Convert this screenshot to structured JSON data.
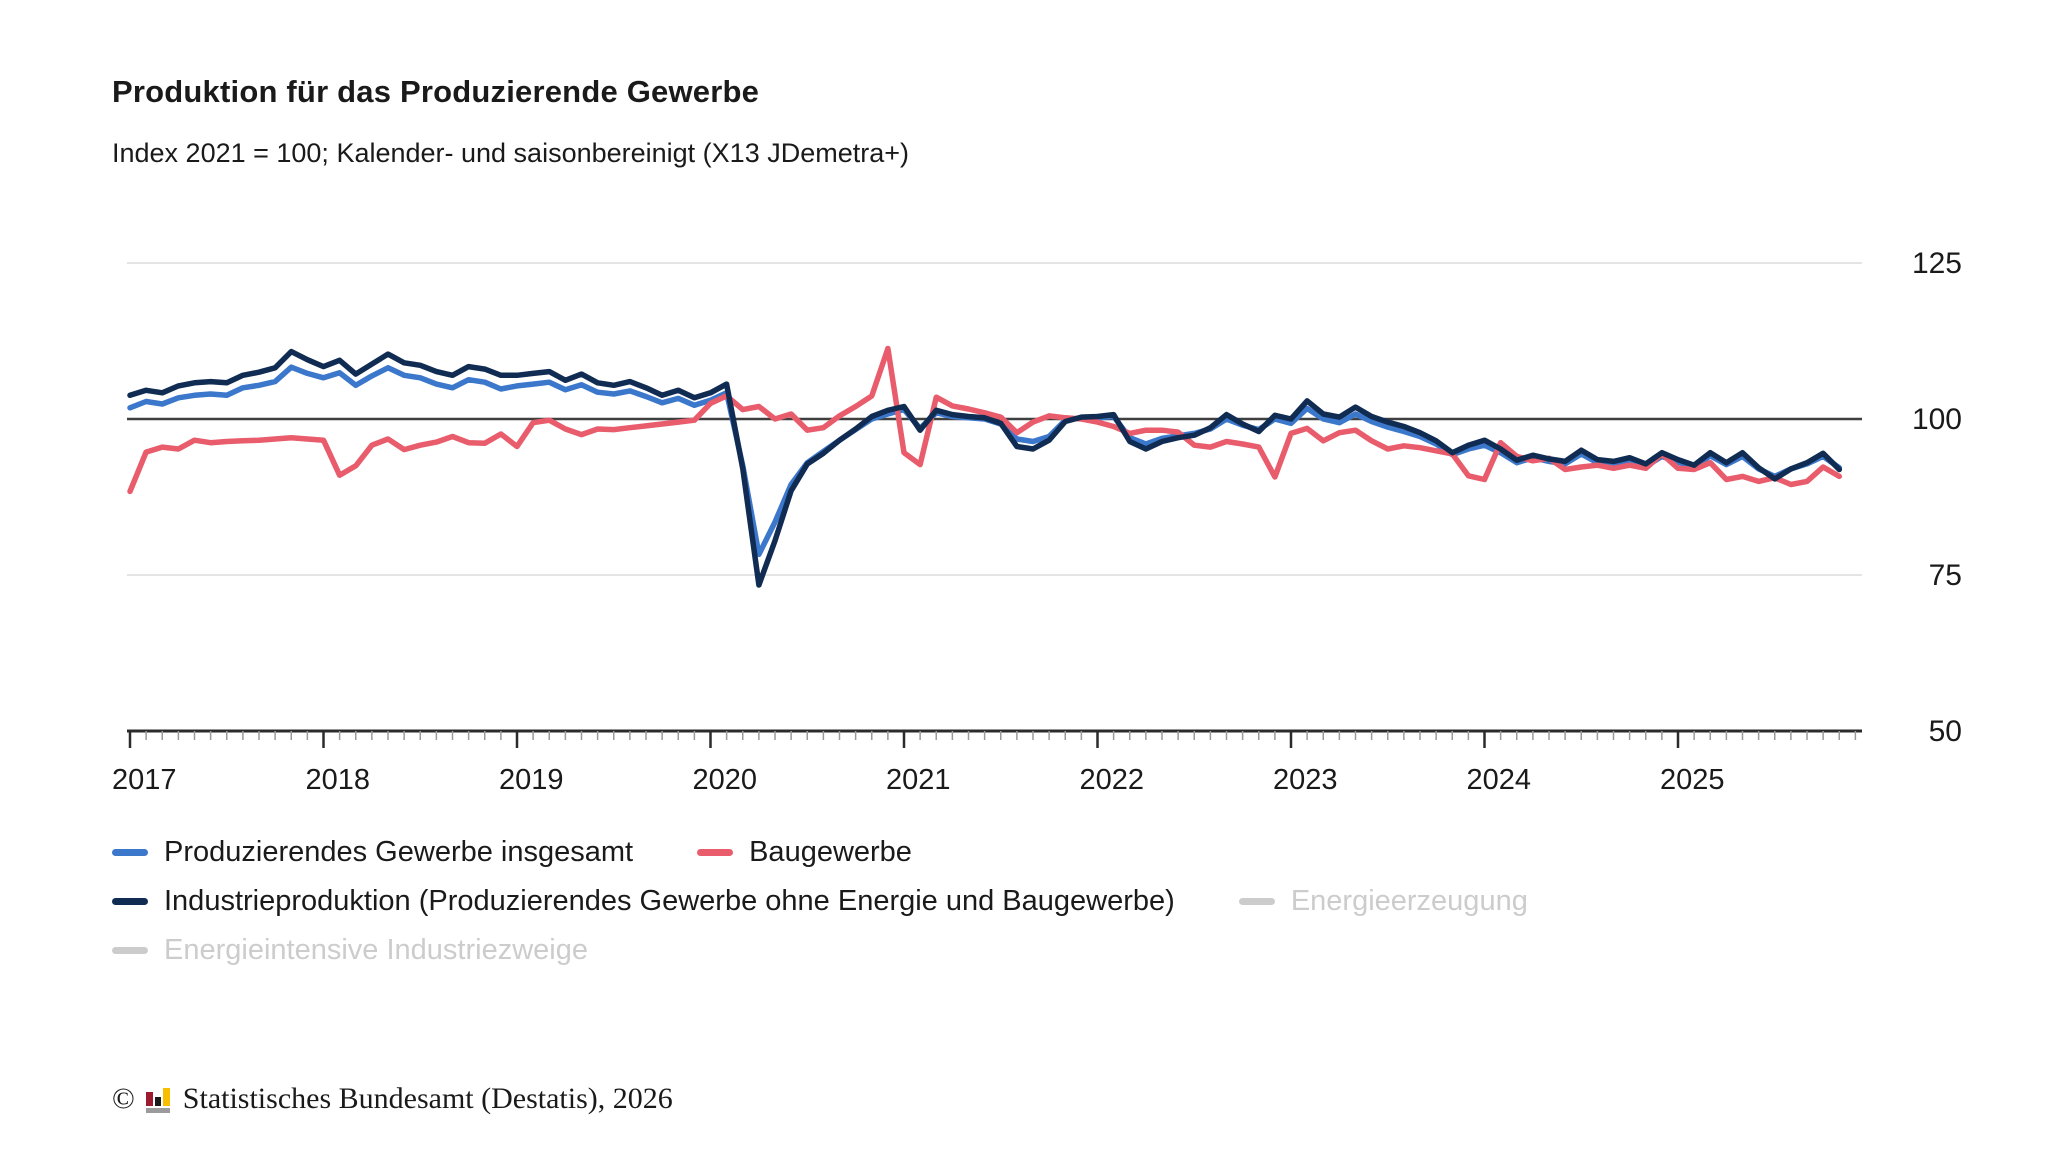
{
  "header": {
    "title": "Produktion für das Produzierende Gewerbe",
    "subtitle": "Index 2021 = 100; Kalender- und saisonbereinigt (X13 JDemetra+)"
  },
  "chart_data": {
    "type": "line",
    "title": "Produktion für das Produzierende Gewerbe",
    "subtitle": "Index 2021 = 100; Kalender- und saisonbereinigt (X13 JDemetra+)",
    "frequency": "monthly",
    "x_start": "2017-01",
    "x_end": "2025-11",
    "x_tick_labels": [
      "2017",
      "2018",
      "2019",
      "2020",
      "2021",
      "2022",
      "2023",
      "2024",
      "2025"
    ],
    "y_ticks": [
      50,
      75,
      100,
      125
    ],
    "ylim": [
      50,
      125
    ],
    "baseline_value": 100,
    "y_axis_side": "right",
    "grid": "horizontal",
    "legend_position": "bottom",
    "colors": {
      "grid_light": "#dcdcdc",
      "baseline": "#3f3f3f",
      "axis": "#2b2b2b",
      "minor_tick": "#9a9a9a",
      "label": "#1a1a1a",
      "disabled": "#cccccc"
    },
    "series": [
      {
        "name": "Produzierendes Gewerbe insgesamt",
        "color": "#3b77cb",
        "active": true,
        "values": [
          101.8,
          102.8,
          102.4,
          103.4,
          103.8,
          104.0,
          103.8,
          105.0,
          105.4,
          106.0,
          108.3,
          107.3,
          106.6,
          107.4,
          105.4,
          106.9,
          108.2,
          107.0,
          106.6,
          105.6,
          105.0,
          106.3,
          105.9,
          104.8,
          105.3,
          105.6,
          105.9,
          104.7,
          105.5,
          104.3,
          104.0,
          104.5,
          103.6,
          102.6,
          103.3,
          102.2,
          103.0,
          104.2,
          92.5,
          78.3,
          83.5,
          89.5,
          93.0,
          94.8,
          96.6,
          98.3,
          100.0,
          100.8,
          101.5,
          98.5,
          101.0,
          100.4,
          100.2,
          100.0,
          99.2,
          96.8,
          96.4,
          97.2,
          99.8,
          100.2,
          100.2,
          100.4,
          97.0,
          96.0,
          96.9,
          97.3,
          97.7,
          98.4,
          100.0,
          99.0,
          98.3,
          100.0,
          99.3,
          101.7,
          100.0,
          99.4,
          100.8,
          99.6,
          98.7,
          98.0,
          97.2,
          96.0,
          94.3,
          95.2,
          95.8,
          94.6,
          93.0,
          93.8,
          93.2,
          92.8,
          94.4,
          93.0,
          92.8,
          93.3,
          92.4,
          94.0,
          93.1,
          92.3,
          94.1,
          92.7,
          94.0,
          92.0,
          90.8,
          92.0,
          92.8,
          94.0,
          92.2
        ]
      },
      {
        "name": "Baugewerbe",
        "color": "#e85c6c",
        "active": true,
        "values": [
          88.4,
          94.7,
          95.5,
          95.2,
          96.6,
          96.2,
          96.4,
          96.5,
          96.6,
          96.8,
          97.0,
          96.8,
          96.6,
          91.0,
          92.5,
          95.8,
          96.8,
          95.1,
          95.8,
          96.3,
          97.2,
          96.2,
          96.1,
          97.6,
          95.6,
          99.4,
          99.8,
          98.4,
          97.5,
          98.4,
          98.3,
          98.6,
          98.9,
          99.2,
          99.5,
          99.8,
          102.5,
          103.7,
          101.5,
          102.0,
          100.0,
          100.8,
          98.2,
          98.6,
          100.5,
          102.0,
          103.7,
          111.3,
          94.6,
          92.7,
          103.5,
          102.1,
          101.6,
          101.0,
          100.3,
          97.8,
          99.5,
          100.5,
          100.2,
          100.0,
          99.5,
          98.8,
          97.7,
          98.2,
          98.2,
          97.9,
          95.8,
          95.5,
          96.4,
          96.0,
          95.5,
          90.7,
          97.7,
          98.5,
          96.5,
          97.8,
          98.2,
          96.5,
          95.2,
          95.7,
          95.4,
          94.9,
          94.4,
          90.9,
          90.3,
          96.2,
          94.0,
          93.3,
          93.7,
          91.9,
          92.3,
          92.6,
          92.1,
          92.6,
          92.1,
          94.4,
          92.1,
          91.9,
          93.0,
          90.3,
          90.8,
          90.0,
          90.6,
          89.5,
          90.0,
          92.3,
          90.8
        ]
      },
      {
        "name": "Industrieproduktion (Produzierendes Gewerbe ohne Energie und Baugewerbe)",
        "color": "#102c53",
        "active": true,
        "values": [
          103.8,
          104.6,
          104.2,
          105.3,
          105.8,
          106.0,
          105.8,
          107.0,
          107.5,
          108.2,
          110.8,
          109.5,
          108.4,
          109.4,
          107.2,
          108.8,
          110.4,
          109.0,
          108.6,
          107.6,
          107.0,
          108.4,
          108.0,
          107.0,
          107.0,
          107.3,
          107.6,
          106.2,
          107.2,
          105.8,
          105.4,
          106.0,
          105.0,
          103.8,
          104.6,
          103.4,
          104.2,
          105.6,
          92.0,
          73.4,
          80.5,
          88.5,
          92.8,
          94.5,
          96.6,
          98.4,
          100.4,
          101.4,
          102.0,
          98.2,
          101.4,
          100.7,
          100.4,
          100.2,
          99.3,
          95.6,
          95.2,
          96.6,
          99.6,
          100.3,
          100.4,
          100.7,
          96.4,
          95.2,
          96.4,
          97.0,
          97.4,
          98.6,
          100.7,
          99.2,
          98.0,
          100.6,
          100.0,
          102.9,
          100.8,
          100.3,
          101.9,
          100.4,
          99.5,
          98.8,
          97.8,
          96.5,
          94.6,
          95.8,
          96.6,
          95.2,
          93.4,
          94.2,
          93.6,
          93.2,
          95.0,
          93.5,
          93.2,
          93.8,
          92.8,
          94.6,
          93.5,
          92.6,
          94.6,
          93.0,
          94.6,
          92.2,
          90.4,
          92.0,
          93.0,
          94.5,
          91.9
        ]
      },
      {
        "name": "Energieerzeugung",
        "color": "#cccccc",
        "active": false,
        "values": []
      },
      {
        "name": "Energieintensive Industriezweige",
        "color": "#cccccc",
        "active": false,
        "values": []
      }
    ]
  },
  "footer": {
    "copyright": "©",
    "source": "Statistisches Bundesamt (Destatis), 2026",
    "logo_colors": {
      "red": "#9c1b30",
      "black": "#1a1a1a",
      "gold": "#f8be00",
      "gray": "#9b9b9b"
    }
  }
}
